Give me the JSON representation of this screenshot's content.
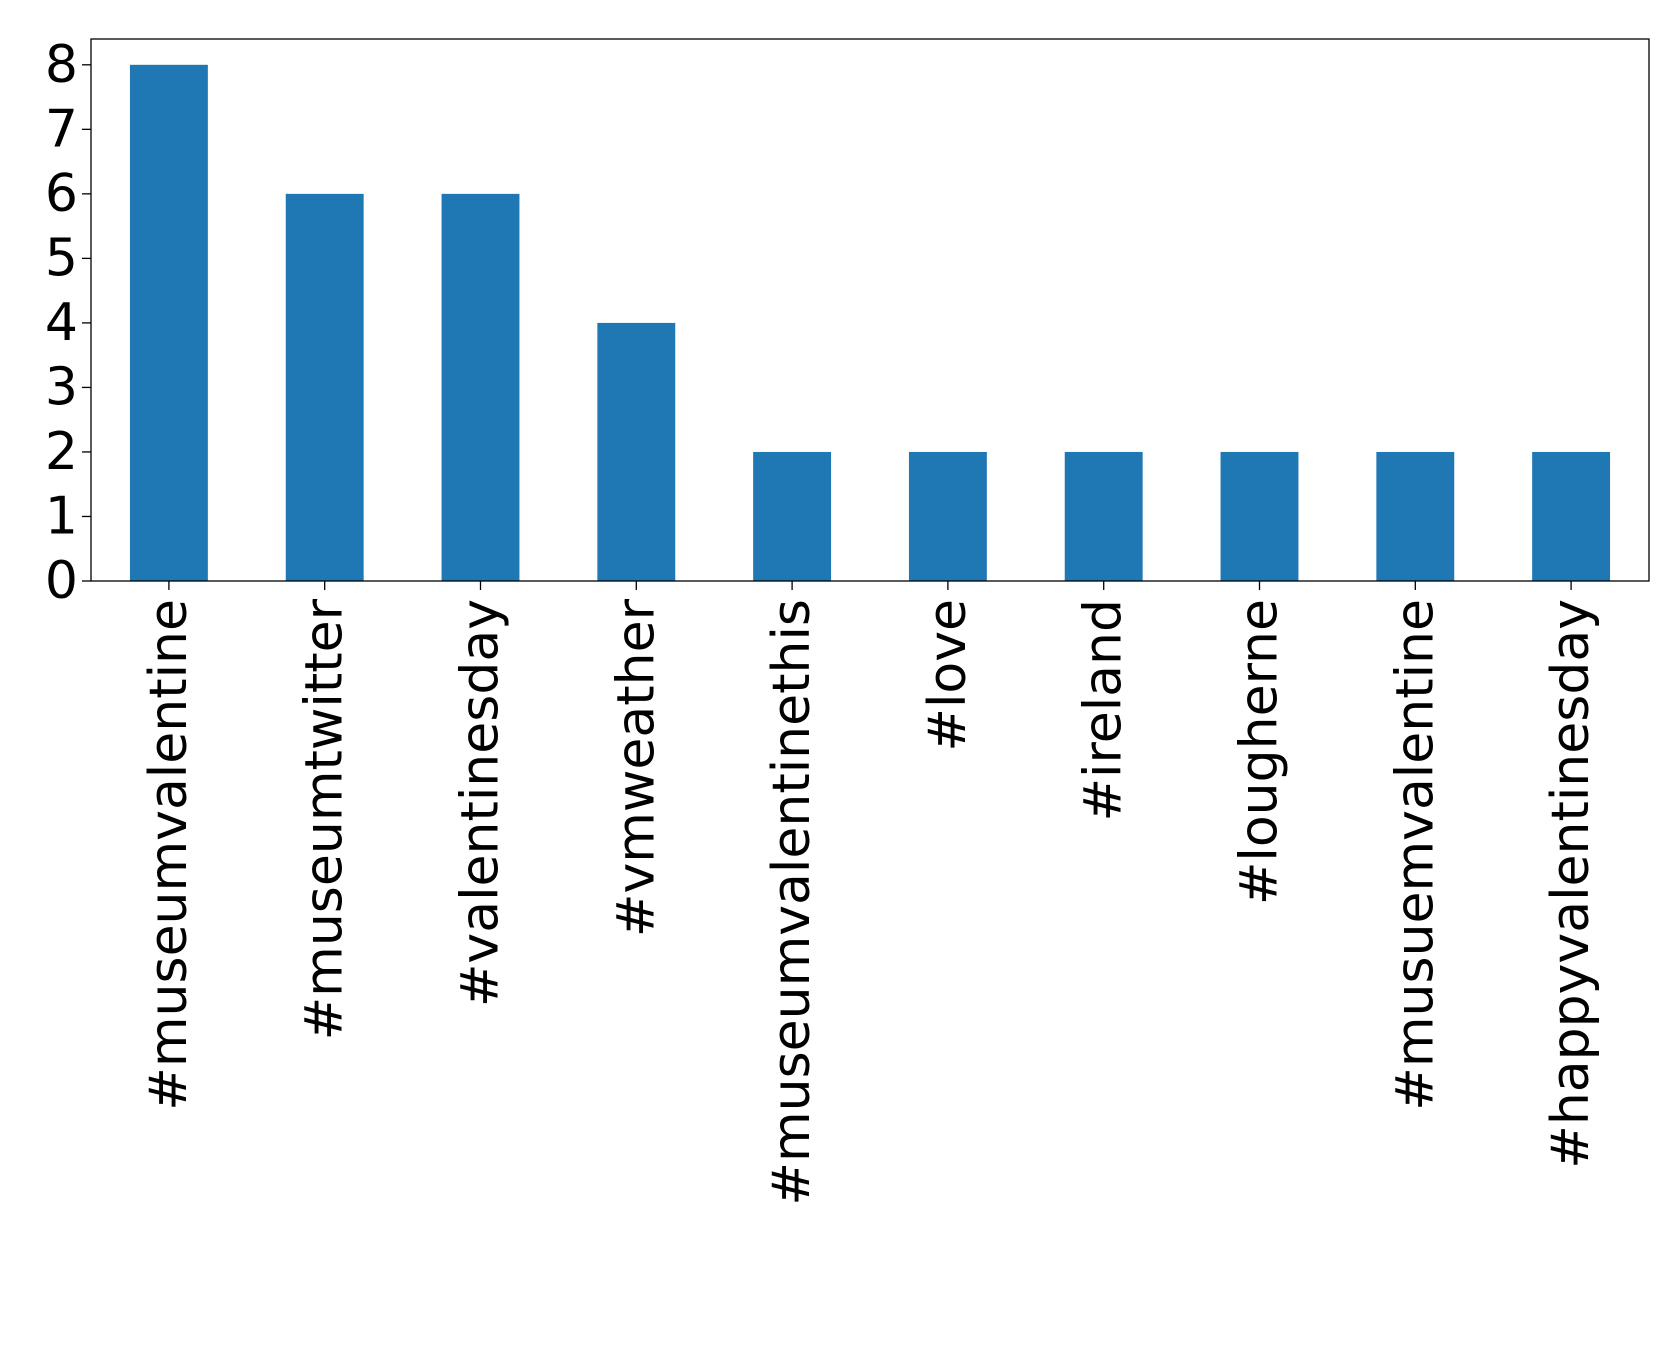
{
  "chart_data": {
    "type": "bar",
    "categories": [
      "#museumvalentine",
      "#museumtwitter",
      "#valentinesday",
      "#vmweather",
      "#museumvalentinethis",
      "#love",
      "#ireland",
      "#lougherne",
      "#musuemvalentine",
      "#happyvalentinesday"
    ],
    "values": [
      8,
      6,
      6,
      4,
      2,
      2,
      2,
      2,
      2,
      2
    ],
    "yticks": [
      "0",
      "1",
      "2",
      "3",
      "4",
      "5",
      "6",
      "7",
      "8"
    ],
    "ylim": [
      0,
      8.4
    ],
    "title": "",
    "xlabel": "",
    "ylabel": "",
    "grid": false,
    "legend": "none",
    "bar_color": "#1f77b4"
  }
}
